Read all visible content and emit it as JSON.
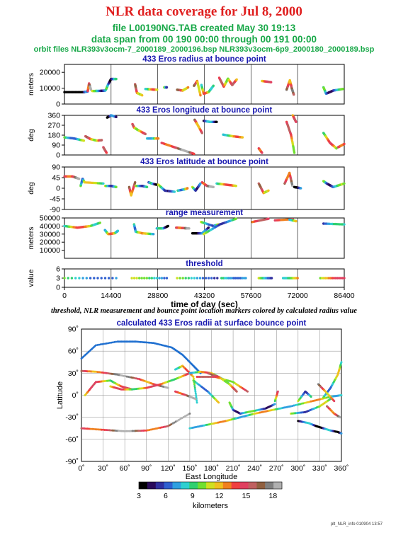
{
  "header": {
    "title": "NLR data coverage for Jul 8, 2000",
    "file_line": "file L00190NG.TAB created May 30 19:13",
    "span_line": "data span from 00 190 00:00 through 00 191 00:00",
    "orbit_line": "orbit files NLR393v3ocm-7_2000189_2000196.bsp NLR393v3ocm-6p9_2000180_2000189.bsp"
  },
  "note": "threshold, NLR measurement and bounce point location markers colored by calculated radius value",
  "footer": "plt_NLR_info 010904 13:57",
  "chart_data": [
    {
      "type": "scatter",
      "title": "433 Eros radius at bounce point",
      "ylabel": "meters",
      "ylim": [
        0,
        25000
      ],
      "yticks": [
        0,
        10000,
        20000
      ],
      "xlim": [
        0,
        86400
      ],
      "segments": [
        {
          "x": [
            0,
            6000,
            7200
          ],
          "y": [
            7500,
            7500,
            8000
          ]
        },
        {
          "x": [
            7200,
            7600,
            8200
          ],
          "y": [
            8200,
            13000,
            9000
          ]
        },
        {
          "x": [
            8600,
            11000,
            12600
          ],
          "y": [
            8200,
            8300,
            8500
          ]
        },
        {
          "x": [
            12800,
            13400,
            14400,
            16000
          ],
          "y": [
            9000,
            12000,
            15800,
            15800
          ]
        },
        {
          "x": [
            21800,
            22400,
            24000
          ],
          "y": [
            12500,
            7000,
            5500
          ]
        },
        {
          "x": [
            25000,
            27000,
            28600
          ],
          "y": [
            9500,
            9200,
            9000
          ]
        },
        {
          "x": [
            30800,
            31600
          ],
          "y": [
            10500,
            10500
          ]
        },
        {
          "x": [
            34800,
            36500,
            38200
          ],
          "y": [
            9000,
            8500,
            10500
          ]
        },
        {
          "x": [
            40000,
            41000,
            42000
          ],
          "y": [
            11500,
            14500,
            5500
          ]
        },
        {
          "x": [
            42300,
            43000,
            44500,
            46000
          ],
          "y": [
            12000,
            6500,
            7500,
            11500
          ]
        },
        {
          "x": [
            47800,
            49200,
            50500,
            51800,
            53200
          ],
          "y": [
            16500,
            11000,
            16000,
            12000,
            15500
          ]
        },
        {
          "x": [
            61000,
            63800
          ],
          "y": [
            14500,
            13800
          ]
        },
        {
          "x": [
            68600,
            69600,
            70200,
            70800
          ],
          "y": [
            9000,
            15000,
            10000,
            6000
          ]
        },
        {
          "x": [
            80000,
            80800,
            83000,
            86000
          ],
          "y": [
            10500,
            6500,
            8500,
            9500
          ]
        }
      ]
    },
    {
      "type": "scatter",
      "title": "433 Eros longitude at bounce point",
      "ylabel": "deg",
      "ylim": [
        0,
        360
      ],
      "yticks": [
        0,
        90,
        180,
        270,
        360
      ],
      "xlim": [
        0,
        86400
      ],
      "segments": [
        {
          "x": [
            0,
            3000,
            6000
          ],
          "y": [
            160,
            150,
            130
          ]
        },
        {
          "x": [
            6500,
            8000,
            10000,
            11500
          ],
          "y": [
            170,
            145,
            130,
            135
          ]
        },
        {
          "x": [
            12000,
            13000
          ],
          "y": [
            70,
            20
          ]
        },
        {
          "x": [
            13200,
            14400,
            16000
          ],
          "y": [
            340,
            360,
            345
          ]
        },
        {
          "x": [
            21000,
            21500,
            22500,
            25000
          ],
          "y": [
            280,
            250,
            230,
            190
          ]
        },
        {
          "x": [
            25500,
            28000,
            29000
          ],
          "y": [
            150,
            150,
            150
          ]
        },
        {
          "x": [
            30000,
            34000,
            38000,
            40000
          ],
          "y": [
            110,
            70,
            30,
            10
          ]
        },
        {
          "x": [
            40200,
            41000,
            42500
          ],
          "y": [
            320,
            280,
            200
          ]
        },
        {
          "x": [
            43000,
            45000,
            47000
          ],
          "y": [
            310,
            300,
            300
          ]
        },
        {
          "x": [
            49000,
            52000,
            55000
          ],
          "y": [
            185,
            170,
            160
          ]
        },
        {
          "x": [
            60000,
            61000
          ],
          "y": [
            60,
            20
          ]
        },
        {
          "x": [
            68600,
            70000,
            71000
          ],
          "y": [
            300,
            180,
            20
          ]
        },
        {
          "x": [
            70500,
            71500
          ],
          "y": [
            360,
            300
          ]
        },
        {
          "x": [
            80000,
            82000,
            84000
          ],
          "y": [
            200,
            110,
            60
          ]
        },
        {
          "x": [
            84500,
            86400
          ],
          "y": [
            70,
            100
          ]
        }
      ]
    },
    {
      "type": "scatter",
      "title": "433 Eros latitude at bounce point",
      "ylabel": "deg",
      "ylim": [
        -90,
        90
      ],
      "yticks": [
        -90,
        -45,
        0,
        45,
        90
      ],
      "xlim": [
        0,
        86400
      ],
      "segments": [
        {
          "x": [
            0,
            2500,
            4500
          ],
          "y": [
            50,
            50,
            40
          ]
        },
        {
          "x": [
            5000,
            5600,
            6200,
            12000
          ],
          "y": [
            10,
            40,
            25,
            20
          ]
        },
        {
          "x": [
            12600,
            14400,
            16000
          ],
          "y": [
            10,
            10,
            5
          ]
        },
        {
          "x": [
            20000,
            20600,
            21800
          ],
          "y": [
            5,
            -30,
            25
          ]
        },
        {
          "x": [
            22000,
            24000,
            25500
          ],
          "y": [
            10,
            10,
            5
          ]
        },
        {
          "x": [
            26000,
            27000,
            28400
          ],
          "y": [
            25,
            20,
            15
          ]
        },
        {
          "x": [
            29000,
            31000,
            34000
          ],
          "y": [
            15,
            -10,
            -15
          ]
        },
        {
          "x": [
            35000,
            37000,
            38000
          ],
          "y": [
            -10,
            -5,
            0
          ]
        },
        {
          "x": [
            39500,
            40500,
            42000
          ],
          "y": [
            5,
            -10,
            20
          ]
        },
        {
          "x": [
            42500,
            44000,
            46000
          ],
          "y": [
            25,
            10,
            5
          ]
        },
        {
          "x": [
            47000,
            50000,
            53000
          ],
          "y": [
            20,
            15,
            10
          ]
        },
        {
          "x": [
            60000,
            61500,
            63000
          ],
          "y": [
            20,
            -20,
            -10
          ]
        },
        {
          "x": [
            68000,
            69500,
            70400
          ],
          "y": [
            20,
            65,
            10
          ]
        },
        {
          "x": [
            71000,
            73000
          ],
          "y": [
            5,
            0
          ]
        },
        {
          "x": [
            80000,
            81000,
            83000,
            86400
          ],
          "y": [
            30,
            20,
            5,
            20
          ]
        }
      ]
    },
    {
      "type": "scatter",
      "title": "range measurement",
      "ylabel": "meters",
      "ylim": [
        0,
        50000
      ],
      "yticks": [
        10000,
        20000,
        30000,
        40000,
        50000
      ],
      "xlim": [
        0,
        86400
      ],
      "segments": [
        {
          "x": [
            0,
            4000,
            8000,
            11000
          ],
          "y": [
            40000,
            38000,
            40000,
            44000
          ]
        },
        {
          "x": [
            12500,
            13500,
            15500,
            16500
          ],
          "y": [
            35000,
            30000,
            31000,
            34000
          ]
        },
        {
          "x": [
            21500,
            22000,
            24000,
            27500
          ],
          "y": [
            42000,
            33000,
            31000,
            30000
          ]
        },
        {
          "x": [
            28500,
            30500,
            32000
          ],
          "y": [
            37000,
            37000,
            40000
          ]
        },
        {
          "x": [
            34500,
            36500,
            38500
          ],
          "y": [
            38000,
            37500,
            37000
          ]
        },
        {
          "x": [
            39500,
            42500,
            44500
          ],
          "y": [
            31000,
            31000,
            38000
          ]
        },
        {
          "x": [
            42200,
            46000,
            47500
          ],
          "y": [
            45000,
            40000,
            42000
          ]
        },
        {
          "x": [
            43000,
            48000,
            53000
          ],
          "y": [
            30000,
            42000,
            49000
          ]
        },
        {
          "x": [
            58000,
            63000
          ],
          "y": [
            45000,
            49000
          ]
        },
        {
          "x": [
            65000,
            70500
          ],
          "y": [
            47000,
            48500
          ]
        },
        {
          "x": [
            69500,
            71500
          ],
          "y": [
            48000,
            46000
          ]
        },
        {
          "x": [
            80000,
            86400
          ],
          "y": [
            43000,
            42000
          ]
        }
      ]
    },
    {
      "type": "scatter",
      "title": "threshold",
      "ylabel": "value",
      "xlabel": "time of day (sec)",
      "ylim": [
        0,
        6
      ],
      "yticks": [
        0,
        3,
        6
      ],
      "xlim": [
        0,
        86400
      ],
      "xticks": [
        0,
        14400,
        28800,
        43200,
        57600,
        72000,
        86400
      ],
      "segments": [
        {
          "x": [
            0,
            16000
          ],
          "y": [
            3,
            3
          ]
        },
        {
          "x": [
            20800,
            31600
          ],
          "y": [
            3,
            3
          ]
        },
        {
          "x": [
            34800,
            47200
          ],
          "y": [
            3,
            3
          ]
        },
        {
          "x": [
            48500,
            56000
          ],
          "y": [
            3,
            3
          ]
        },
        {
          "x": [
            60000,
            64000
          ],
          "y": [
            3,
            3
          ]
        },
        {
          "x": [
            67500,
            72000
          ],
          "y": [
            3,
            3
          ]
        },
        {
          "x": [
            79000,
            86400
          ],
          "y": [
            3,
            3
          ]
        }
      ]
    },
    {
      "type": "scatter",
      "title": "calculated 433 Eros radii at surface bounce point",
      "xlabel": "East Longitude",
      "ylabel": "Latitude",
      "xlim": [
        0,
        360
      ],
      "ylim": [
        -90,
        90
      ],
      "xticks": [
        0,
        30,
        60,
        90,
        120,
        150,
        180,
        210,
        240,
        270,
        300,
        330,
        360
      ],
      "xtick_labels": [
        "0˚",
        "30˚",
        "60˚",
        "90˚",
        "120˚",
        "150˚",
        "180˚",
        "210˚",
        "240˚",
        "270˚",
        "300˚",
        "330˚",
        "360˚"
      ],
      "yticks": [
        -90,
        -60,
        -30,
        0,
        30,
        60,
        90
      ],
      "ytick_labels": [
        "-90˚",
        "-60˚",
        "-30˚",
        "0˚",
        "30˚",
        "60˚",
        "90˚"
      ],
      "grid": true,
      "segments": [
        {
          "x": [
            0,
            20,
            50,
            75,
            100,
            125,
            140,
            155,
            165
          ],
          "y": [
            50,
            68,
            73,
            73,
            71,
            65,
            55,
            40,
            30
          ],
          "dotted": true
        },
        {
          "x": [
            0,
            30,
            60,
            90,
            120,
            150
          ],
          "y": [
            -45,
            -47,
            -49,
            -48,
            -42,
            -25
          ]
        },
        {
          "x": [
            150,
            175,
            200,
            220,
            240,
            265,
            290,
            320,
            345,
            360
          ],
          "y": [
            -45,
            -40,
            -35,
            -30,
            -25,
            -20,
            -15,
            -8,
            -2,
            0
          ]
        },
        {
          "x": [
            0,
            20,
            50,
            80,
            100,
            120
          ],
          "y": [
            33,
            32,
            28,
            22,
            15,
            10
          ]
        },
        {
          "x": [
            5,
            20,
            40,
            55,
            70
          ],
          "y": [
            0,
            18,
            20,
            12,
            8
          ]
        },
        {
          "x": [
            40,
            55,
            70,
            90,
            110,
            130,
            150
          ],
          "y": [
            12,
            8,
            8,
            10,
            15,
            22,
            30
          ]
        },
        {
          "x": [
            130,
            140,
            155,
            160
          ],
          "y": [
            35,
            40,
            25,
            -10
          ]
        },
        {
          "x": [
            150,
            165,
            180,
            200,
            215
          ],
          "y": [
            30,
            32,
            30,
            20,
            5
          ]
        },
        {
          "x": [
            160,
            185,
            210,
            230
          ],
          "y": [
            25,
            25,
            18,
            5
          ]
        },
        {
          "x": [
            130,
            145,
            158
          ],
          "y": [
            5,
            0,
            -5
          ]
        },
        {
          "x": [
            155,
            175,
            190
          ],
          "y": [
            20,
            5,
            -10
          ]
        },
        {
          "x": [
            175,
            190,
            205,
            215
          ],
          "y": [
            30,
            25,
            15,
            5
          ]
        },
        {
          "x": [
            205,
            210,
            220,
            235,
            255,
            268
          ],
          "y": [
            -10,
            -20,
            -25,
            -22,
            -18,
            -12
          ]
        },
        {
          "x": [
            268,
            272
          ],
          "y": [
            -8,
            5
          ]
        },
        {
          "x": [
            290,
            310,
            330,
            345
          ],
          "y": [
            -25,
            -23,
            -15,
            -5
          ]
        },
        {
          "x": [
            300,
            310,
            318
          ],
          "y": [
            -8,
            5,
            -2
          ]
        },
        {
          "x": [
            335,
            345,
            355,
            360
          ],
          "y": [
            -3,
            10,
            28,
            45
          ]
        },
        {
          "x": [
            328,
            338,
            350
          ],
          "y": [
            15,
            5,
            -8
          ]
        },
        {
          "x": [
            340,
            350,
            358
          ],
          "y": [
            -15,
            -25,
            -30
          ]
        },
        {
          "x": [
            300,
            315,
            325,
            335,
            345,
            355,
            360
          ],
          "y": [
            -35,
            -38,
            -42,
            -45,
            -48,
            -50,
            -52
          ]
        }
      ],
      "colorbar": {
        "label": "kilometers",
        "ticks": [
          3,
          6,
          9,
          12,
          15,
          18
        ],
        "range": [
          3,
          19
        ]
      }
    }
  ]
}
